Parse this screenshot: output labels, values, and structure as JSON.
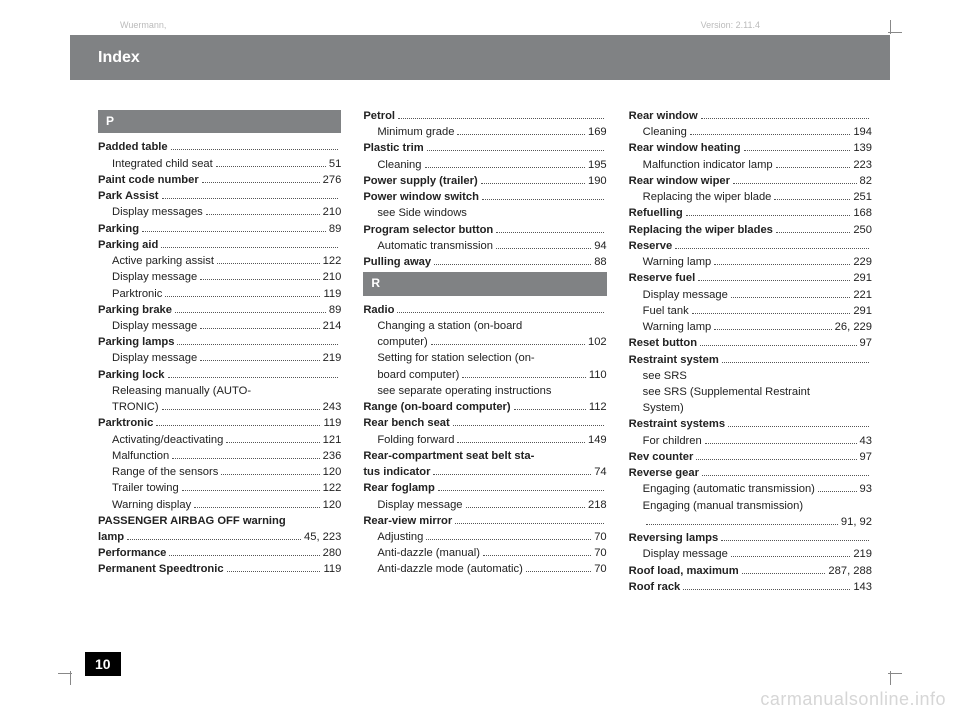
{
  "meta": {
    "left": "Wuermann,",
    "right": "Version: 2.11.4"
  },
  "header": {
    "title": "Index"
  },
  "pageNumber": "10",
  "watermark": "carmanualsonline.info",
  "col1": {
    "sections": [
      {
        "letter": "P",
        "entries": [
          {
            "label": "Padded table",
            "bold": true
          },
          {
            "label": "Integrated child seat",
            "page": "51",
            "sub": true
          },
          {
            "label": "Paint code number",
            "bold": true,
            "page": "276"
          },
          {
            "label": "Park Assist",
            "bold": true
          },
          {
            "label": "Display messages",
            "page": "210",
            "sub": true
          },
          {
            "label": "Parking",
            "bold": true,
            "page": "89"
          },
          {
            "label": "Parking aid",
            "bold": true
          },
          {
            "label": "Active parking assist",
            "page": "122",
            "sub": true
          },
          {
            "label": "Display message",
            "page": "210",
            "sub": true
          },
          {
            "label": "Parktronic",
            "page": "119",
            "sub": true
          },
          {
            "label": "Parking brake",
            "bold": true,
            "page": "89"
          },
          {
            "label": "Display message",
            "page": "214",
            "sub": true
          },
          {
            "label": "Parking lamps",
            "bold": true
          },
          {
            "label": "Display message",
            "page": "219",
            "sub": true
          },
          {
            "label": "Parking lock",
            "bold": true
          },
          {
            "label": "Releasing manually (AUTO-",
            "sub": true,
            "nopage": true
          },
          {
            "label": "TRONIC)",
            "page": "243",
            "sub": true
          },
          {
            "label": "Parktronic",
            "bold": true,
            "page": "119"
          },
          {
            "label": "Activating/deactivating",
            "page": "121",
            "sub": true
          },
          {
            "label": "Malfunction",
            "page": "236",
            "sub": true
          },
          {
            "label": "Range of the sensors",
            "page": "120",
            "sub": true
          },
          {
            "label": "Trailer towing",
            "page": "122",
            "sub": true
          },
          {
            "label": "Warning display",
            "page": "120",
            "sub": true
          },
          {
            "label": "PASSENGER AIRBAG OFF warning",
            "bold": true,
            "nopage": true
          },
          {
            "label": "lamp",
            "bold": true,
            "page": "45, 223"
          },
          {
            "label": "Performance",
            "bold": true,
            "page": "280"
          },
          {
            "label": "Permanent Speedtronic",
            "bold": true,
            "page": "119"
          }
        ]
      }
    ]
  },
  "col2": {
    "preEntries": [
      {
        "label": "Petrol",
        "bold": true
      },
      {
        "label": "Minimum grade",
        "page": "169",
        "sub": true
      },
      {
        "label": "Plastic trim",
        "bold": true
      },
      {
        "label": "Cleaning",
        "page": "195",
        "sub": true
      },
      {
        "label": "Power supply (trailer)",
        "bold": true,
        "page": "190"
      },
      {
        "label": "Power window switch",
        "bold": true
      },
      {
        "label": "see Side windows",
        "sub": true,
        "nopage": true
      },
      {
        "label": "Program selector button",
        "bold": true
      },
      {
        "label": "Automatic transmission",
        "page": "94",
        "sub": true
      },
      {
        "label": "Pulling away",
        "bold": true,
        "page": "88"
      }
    ],
    "sections": [
      {
        "letter": "R",
        "entries": [
          {
            "label": "Radio",
            "bold": true
          },
          {
            "label": "Changing a station (on-board",
            "sub": true,
            "nopage": true
          },
          {
            "label": "computer)",
            "page": "102",
            "sub": true
          },
          {
            "label": "Setting for station selection (on-",
            "sub": true,
            "nopage": true
          },
          {
            "label": "board computer)",
            "page": "110",
            "sub": true
          },
          {
            "label": "see separate operating instructions",
            "sub": true,
            "nopage": true
          },
          {
            "label": "Range (on-board computer)",
            "bold": true,
            "page": "112"
          },
          {
            "label": "Rear bench seat",
            "bold": true
          },
          {
            "label": "Folding forward",
            "page": "149",
            "sub": true
          },
          {
            "label": "Rear-compartment seat belt sta-",
            "bold": true,
            "nopage": true
          },
          {
            "label": "tus indicator",
            "bold": true,
            "page": "74"
          },
          {
            "label": "Rear foglamp",
            "bold": true
          },
          {
            "label": "Display message",
            "page": "218",
            "sub": true
          },
          {
            "label": "Rear-view mirror",
            "bold": true
          },
          {
            "label": "Adjusting",
            "page": "70",
            "sub": true
          },
          {
            "label": "Anti-dazzle (manual)",
            "page": "70",
            "sub": true
          },
          {
            "label": "Anti-dazzle mode (automatic)",
            "page": "70",
            "sub": true
          }
        ]
      }
    ]
  },
  "col3": {
    "entries": [
      {
        "label": "Rear window",
        "bold": true
      },
      {
        "label": "Cleaning",
        "page": "194",
        "sub": true
      },
      {
        "label": "Rear window heating",
        "bold": true,
        "page": "139"
      },
      {
        "label": "Malfunction indicator lamp",
        "page": "223",
        "sub": true
      },
      {
        "label": "Rear window wiper",
        "bold": true,
        "page": "82"
      },
      {
        "label": "Replacing the wiper blade",
        "page": "251",
        "sub": true
      },
      {
        "label": "Refuelling",
        "bold": true,
        "page": "168"
      },
      {
        "label": "Replacing the wiper blades",
        "bold": true,
        "page": "250"
      },
      {
        "label": "Reserve",
        "bold": true
      },
      {
        "label": "Warning lamp",
        "page": "229",
        "sub": true
      },
      {
        "label": "Reserve fuel",
        "bold": true,
        "page": "291"
      },
      {
        "label": "Display message",
        "page": "221",
        "sub": true
      },
      {
        "label": "Fuel tank",
        "page": "291",
        "sub": true
      },
      {
        "label": "Warning lamp",
        "page": "26, 229",
        "sub": true
      },
      {
        "label": "Reset button",
        "bold": true,
        "page": "97"
      },
      {
        "label": "Restraint system",
        "bold": true
      },
      {
        "label": "see SRS",
        "sub": true,
        "nopage": true
      },
      {
        "label": "see SRS (Supplemental Restraint",
        "sub": true,
        "nopage": true
      },
      {
        "label": "System)",
        "sub": true,
        "nopage": true
      },
      {
        "label": "Restraint systems",
        "bold": true
      },
      {
        "label": "For children",
        "page": "43",
        "sub": true
      },
      {
        "label": "Rev counter",
        "bold": true,
        "page": "97"
      },
      {
        "label": "Reverse gear",
        "bold": true
      },
      {
        "label": "Engaging (automatic transmission)",
        "page": "93",
        "sub": true
      },
      {
        "label": "Engaging (manual transmission)",
        "sub": true,
        "nopage": true
      },
      {
        "label": "",
        "page": "91, 92",
        "sub": true
      },
      {
        "label": "Reversing lamps",
        "bold": true
      },
      {
        "label": "Display message",
        "page": "219",
        "sub": true
      },
      {
        "label": "Roof load, maximum",
        "bold": true,
        "page": "287, 288"
      },
      {
        "label": "Roof rack",
        "bold": true,
        "page": "143"
      }
    ]
  }
}
